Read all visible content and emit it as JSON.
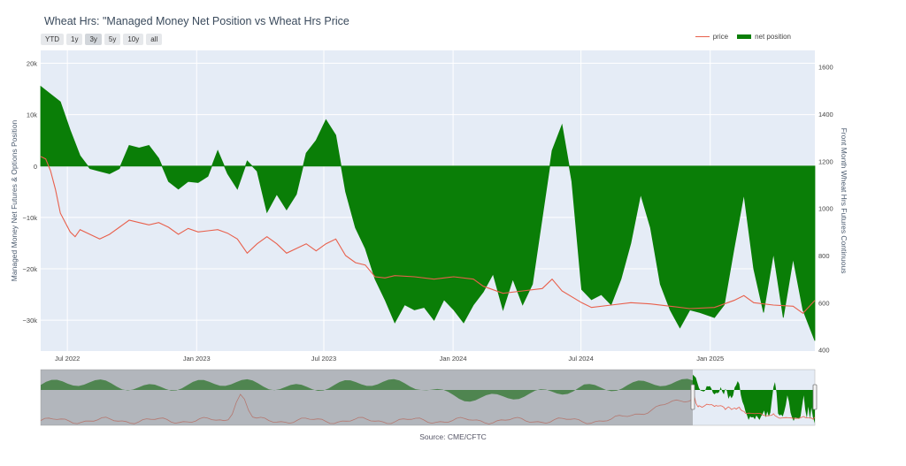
{
  "chart_title": "Wheat Hrs: \"Managed Money Net Position vs Wheat Hrs Price",
  "range_buttons": [
    {
      "label": "YTD",
      "active": false
    },
    {
      "label": "1y",
      "active": false
    },
    {
      "label": "3y",
      "active": true
    },
    {
      "label": "5y",
      "active": false
    },
    {
      "label": "10y",
      "active": false
    },
    {
      "label": "all",
      "active": false
    }
  ],
  "legend": {
    "price": "price",
    "net_position": "net position"
  },
  "source_note": "Source: CME/CFTC",
  "colors": {
    "net_position": "#0a7e07",
    "price": "#e8604c",
    "plot_bg": "#e5ecf6",
    "selector_shade": "#888a8c"
  },
  "chart_data": {
    "type": "area",
    "ylabel": "Managed Money Net Futures & Options Position",
    "y2label": "Front Month Wheat Hrs Futures Continuous",
    "xlim": [
      "2022-05-24",
      "2025-05-30"
    ],
    "ylim": [
      -36000,
      22500
    ],
    "y2lim": [
      395,
      1670
    ],
    "x_ticks": [
      {
        "date": "2022-07-01",
        "label": "Jul 2022"
      },
      {
        "date": "2023-01-01",
        "label": "Jan 2023"
      },
      {
        "date": "2023-07-01",
        "label": "Jul 2023"
      },
      {
        "date": "2024-01-01",
        "label": "Jan 2024"
      },
      {
        "date": "2024-07-01",
        "label": "Jul 2024"
      },
      {
        "date": "2025-01-01",
        "label": "Jan 2025"
      }
    ],
    "y_ticks": [
      {
        "value": 20000,
        "label": "20k"
      },
      {
        "value": 10000,
        "label": "10k"
      },
      {
        "value": 0,
        "label": "0"
      },
      {
        "value": -10000,
        "label": "−10k"
      },
      {
        "value": -20000,
        "label": "−20k"
      },
      {
        "value": -30000,
        "label": "−30k"
      }
    ],
    "y2_ticks": [
      {
        "value": 1600,
        "label": "1600"
      },
      {
        "value": 1400,
        "label": "1400"
      },
      {
        "value": 1200,
        "label": "1200"
      },
      {
        "value": 1000,
        "label": "1000"
      },
      {
        "value": 800,
        "label": "800"
      },
      {
        "value": 600,
        "label": "600"
      },
      {
        "value": 400,
        "label": "400"
      }
    ],
    "series": [
      {
        "name": "net position",
        "axis": "left",
        "kind": "area",
        "points": [
          [
            "2022-05-24",
            15500
          ],
          [
            "2022-06-07",
            14000
          ],
          [
            "2022-06-21",
            12500
          ],
          [
            "2022-07-05",
            7000
          ],
          [
            "2022-07-19",
            2000
          ],
          [
            "2022-08-02",
            -500
          ],
          [
            "2022-08-16",
            -1000
          ],
          [
            "2022-08-30",
            -1500
          ],
          [
            "2022-09-13",
            -500
          ],
          [
            "2022-09-27",
            4000
          ],
          [
            "2022-10-11",
            3500
          ],
          [
            "2022-10-25",
            4000
          ],
          [
            "2022-11-08",
            1500
          ],
          [
            "2022-11-22",
            -3000
          ],
          [
            "2022-12-06",
            -4500
          ],
          [
            "2022-12-20",
            -3000
          ],
          [
            "2023-01-03",
            -3200
          ],
          [
            "2023-01-17",
            -2000
          ],
          [
            "2023-01-31",
            3000
          ],
          [
            "2023-02-14",
            -1500
          ],
          [
            "2023-02-28",
            -4500
          ],
          [
            "2023-03-14",
            1000
          ],
          [
            "2023-03-28",
            -1000
          ],
          [
            "2023-04-11",
            -9000
          ],
          [
            "2023-04-25",
            -5500
          ],
          [
            "2023-05-09",
            -8500
          ],
          [
            "2023-05-23",
            -5500
          ],
          [
            "2023-06-06",
            2500
          ],
          [
            "2023-06-20",
            5000
          ],
          [
            "2023-07-04",
            9000
          ],
          [
            "2023-07-18",
            6000
          ],
          [
            "2023-08-01",
            -5000
          ],
          [
            "2023-08-15",
            -12000
          ],
          [
            "2023-08-29",
            -16000
          ],
          [
            "2023-09-12",
            -22000
          ],
          [
            "2023-09-26",
            -26000
          ],
          [
            "2023-10-10",
            -30500
          ],
          [
            "2023-10-24",
            -27000
          ],
          [
            "2023-11-07",
            -28000
          ],
          [
            "2023-11-21",
            -27500
          ],
          [
            "2023-12-05",
            -30000
          ],
          [
            "2023-12-19",
            -26000
          ],
          [
            "2024-01-02",
            -28000
          ],
          [
            "2024-01-16",
            -30500
          ],
          [
            "2024-01-30",
            -27000
          ],
          [
            "2024-02-13",
            -24500
          ],
          [
            "2024-02-27",
            -21000
          ],
          [
            "2024-03-12",
            -28000
          ],
          [
            "2024-03-26",
            -22000
          ],
          [
            "2024-04-09",
            -27000
          ],
          [
            "2024-04-23",
            -23000
          ],
          [
            "2024-05-07",
            -10000
          ],
          [
            "2024-05-21",
            3000
          ],
          [
            "2024-06-04",
            8000
          ],
          [
            "2024-06-18",
            -3000
          ],
          [
            "2024-07-02",
            -24000
          ],
          [
            "2024-07-16",
            -26000
          ],
          [
            "2024-07-30",
            -25000
          ],
          [
            "2024-08-13",
            -27000
          ],
          [
            "2024-08-27",
            -22000
          ],
          [
            "2024-09-10",
            -15000
          ],
          [
            "2024-09-24",
            -5500
          ],
          [
            "2024-10-08",
            -12000
          ],
          [
            "2024-10-22",
            -23000
          ],
          [
            "2024-11-05",
            -28000
          ],
          [
            "2024-11-19",
            -31500
          ],
          [
            "2024-12-03",
            -28000
          ],
          [
            "2024-12-17",
            -28500
          ],
          [
            "2025-01-07",
            -29500
          ],
          [
            "2025-01-21",
            -27000
          ],
          [
            "2025-02-04",
            -16000
          ],
          [
            "2025-02-18",
            -5500
          ],
          [
            "2025-03-04",
            -20000
          ],
          [
            "2025-03-18",
            -28500
          ],
          [
            "2025-04-01",
            -17000
          ],
          [
            "2025-04-15",
            -29500
          ],
          [
            "2025-04-29",
            -18000
          ],
          [
            "2025-05-13",
            -28000
          ],
          [
            "2025-05-30",
            -34000
          ]
        ]
      },
      {
        "name": "price",
        "axis": "right",
        "kind": "line",
        "points": [
          [
            "2022-05-24",
            1220
          ],
          [
            "2022-05-31",
            1210
          ],
          [
            "2022-06-07",
            1160
          ],
          [
            "2022-06-14",
            1080
          ],
          [
            "2022-06-21",
            980
          ],
          [
            "2022-06-28",
            940
          ],
          [
            "2022-07-05",
            900
          ],
          [
            "2022-07-12",
            880
          ],
          [
            "2022-07-19",
            910
          ],
          [
            "2022-08-02",
            890
          ],
          [
            "2022-08-16",
            870
          ],
          [
            "2022-08-30",
            890
          ],
          [
            "2022-09-13",
            920
          ],
          [
            "2022-09-27",
            950
          ],
          [
            "2022-10-11",
            940
          ],
          [
            "2022-10-25",
            930
          ],
          [
            "2022-11-08",
            940
          ],
          [
            "2022-11-22",
            920
          ],
          [
            "2022-12-06",
            890
          ],
          [
            "2022-12-20",
            915
          ],
          [
            "2023-01-03",
            900
          ],
          [
            "2023-01-17",
            905
          ],
          [
            "2023-01-31",
            910
          ],
          [
            "2023-02-14",
            895
          ],
          [
            "2023-02-28",
            870
          ],
          [
            "2023-03-14",
            810
          ],
          [
            "2023-03-28",
            850
          ],
          [
            "2023-04-11",
            880
          ],
          [
            "2023-04-25",
            850
          ],
          [
            "2023-05-09",
            810
          ],
          [
            "2023-05-23",
            830
          ],
          [
            "2023-06-06",
            850
          ],
          [
            "2023-06-20",
            820
          ],
          [
            "2023-07-04",
            850
          ],
          [
            "2023-07-18",
            870
          ],
          [
            "2023-08-01",
            800
          ],
          [
            "2023-08-15",
            770
          ],
          [
            "2023-08-29",
            760
          ],
          [
            "2023-09-12",
            710
          ],
          [
            "2023-09-26",
            705
          ],
          [
            "2023-10-10",
            715
          ],
          [
            "2023-11-07",
            710
          ],
          [
            "2023-12-05",
            700
          ],
          [
            "2024-01-02",
            710
          ],
          [
            "2024-01-30",
            700
          ],
          [
            "2024-02-13",
            670
          ],
          [
            "2024-03-12",
            640
          ],
          [
            "2024-04-09",
            650
          ],
          [
            "2024-05-07",
            660
          ],
          [
            "2024-05-21",
            700
          ],
          [
            "2024-06-04",
            650
          ],
          [
            "2024-07-02",
            600
          ],
          [
            "2024-07-16",
            580
          ],
          [
            "2024-08-13",
            590
          ],
          [
            "2024-09-10",
            600
          ],
          [
            "2024-10-08",
            595
          ],
          [
            "2024-11-05",
            585
          ],
          [
            "2024-12-03",
            575
          ],
          [
            "2025-01-07",
            580
          ],
          [
            "2025-02-04",
            610
          ],
          [
            "2025-02-18",
            630
          ],
          [
            "2025-03-04",
            600
          ],
          [
            "2025-04-01",
            590
          ],
          [
            "2025-04-29",
            585
          ],
          [
            "2025-05-13",
            555
          ],
          [
            "2025-05-30",
            610
          ]
        ]
      }
    ]
  }
}
